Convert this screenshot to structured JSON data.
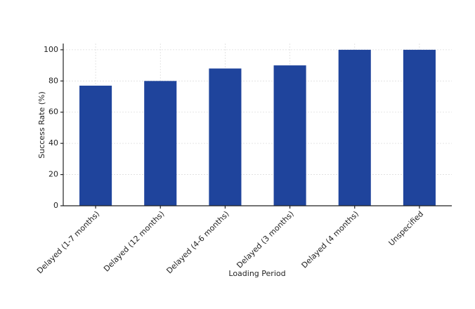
{
  "chart_data": {
    "type": "bar",
    "x_label": "Loading Period",
    "y_label": "Success Rate (%)",
    "categories": [
      "Delayed (1-7 months)",
      "Delayed (12 months)",
      "Delayed (4-6 months)",
      "Delayed (3 months)",
      "Delayed (4 months)",
      "Unspecified"
    ],
    "values": [
      77,
      80,
      88,
      90,
      100,
      100
    ],
    "color": "#1f449c",
    "ylim": [
      0,
      104
    ],
    "yticks": [
      0,
      20,
      40,
      60,
      80,
      100
    ],
    "grid": true
  }
}
